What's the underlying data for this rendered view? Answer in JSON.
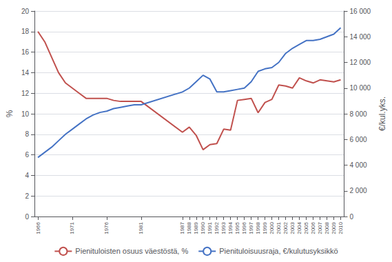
{
  "chart_data": {
    "type": "line",
    "ylabel": "%",
    "y2label": "€/kul.yks.",
    "x": [
      1966,
      1967,
      1968,
      1969,
      1970,
      1971,
      1972,
      1973,
      1974,
      1975,
      1976,
      1977,
      1978,
      1979,
      1980,
      1981,
      1987,
      1988,
      1989,
      1990,
      1991,
      1992,
      1993,
      1994,
      1995,
      1996,
      1997,
      1998,
      1999,
      2000,
      2001,
      2002,
      2003,
      2004,
      2005,
      2006,
      2007,
      2008,
      2009,
      2010
    ],
    "series": [
      {
        "name": "Pienituloisten osuus väestöstä, %",
        "color": "#c0504d",
        "values": [
          18.0,
          17.0,
          15.5,
          14.0,
          13.0,
          12.5,
          12.0,
          11.5,
          11.5,
          11.5,
          11.5,
          11.3,
          11.2,
          11.2,
          11.2,
          11.2,
          8.2,
          8.7,
          7.9,
          6.5,
          7.0,
          7.1,
          8.5,
          8.4,
          11.3,
          11.4,
          11.5,
          10.1,
          11.1,
          11.4,
          12.8,
          12.7,
          12.5,
          13.5,
          13.2,
          13.0,
          13.3,
          13.2,
          13.1,
          13.3
        ]
      },
      {
        "name": "Pienituloisuusraja, €/kulutusyksikkö",
        "color": "#4472c4",
        "axis": "y2",
        "values": [
          4600,
          5000,
          5400,
          5900,
          6400,
          6800,
          7200,
          7600,
          7900,
          8100,
          8200,
          8400,
          8500,
          8600,
          8700,
          8700,
          9700,
          10000,
          10500,
          11000,
          10700,
          9700,
          9700,
          9800,
          9900,
          10000,
          10500,
          11300,
          11500,
          11600,
          12000,
          12700,
          13100,
          13400,
          13700,
          13700,
          13800,
          14000,
          14200,
          14700
        ]
      }
    ],
    "xlim": [
      1965.5,
      2010.5
    ],
    "xticks": [
      1966,
      1971,
      1976,
      1981,
      1987,
      1988,
      1989,
      1990,
      1991,
      1992,
      1993,
      1994,
      1995,
      1996,
      1997,
      1998,
      1999,
      2000,
      2001,
      2002,
      2003,
      2004,
      2005,
      2006,
      2007,
      2008,
      2009,
      2010
    ],
    "ylim": [
      0,
      20
    ],
    "yticks": [
      0,
      2,
      4,
      6,
      8,
      10,
      12,
      14,
      16,
      18,
      20
    ],
    "y2lim": [
      0,
      16000
    ],
    "y2ticks": [
      0,
      {
        "value": 2000,
        "label": "2 000"
      },
      {
        "value": 4000,
        "label": "4 000"
      },
      {
        "value": 6000,
        "label": "6 000"
      },
      {
        "value": 8000,
        "label": "8 000"
      },
      {
        "value": 10000,
        "label": "10 000"
      },
      {
        "value": 12000,
        "label": "12 000"
      },
      {
        "value": 14000,
        "label": "14 000"
      },
      {
        "value": 16000,
        "label": "16 000"
      }
    ],
    "grid": true,
    "legend": "bottom"
  }
}
